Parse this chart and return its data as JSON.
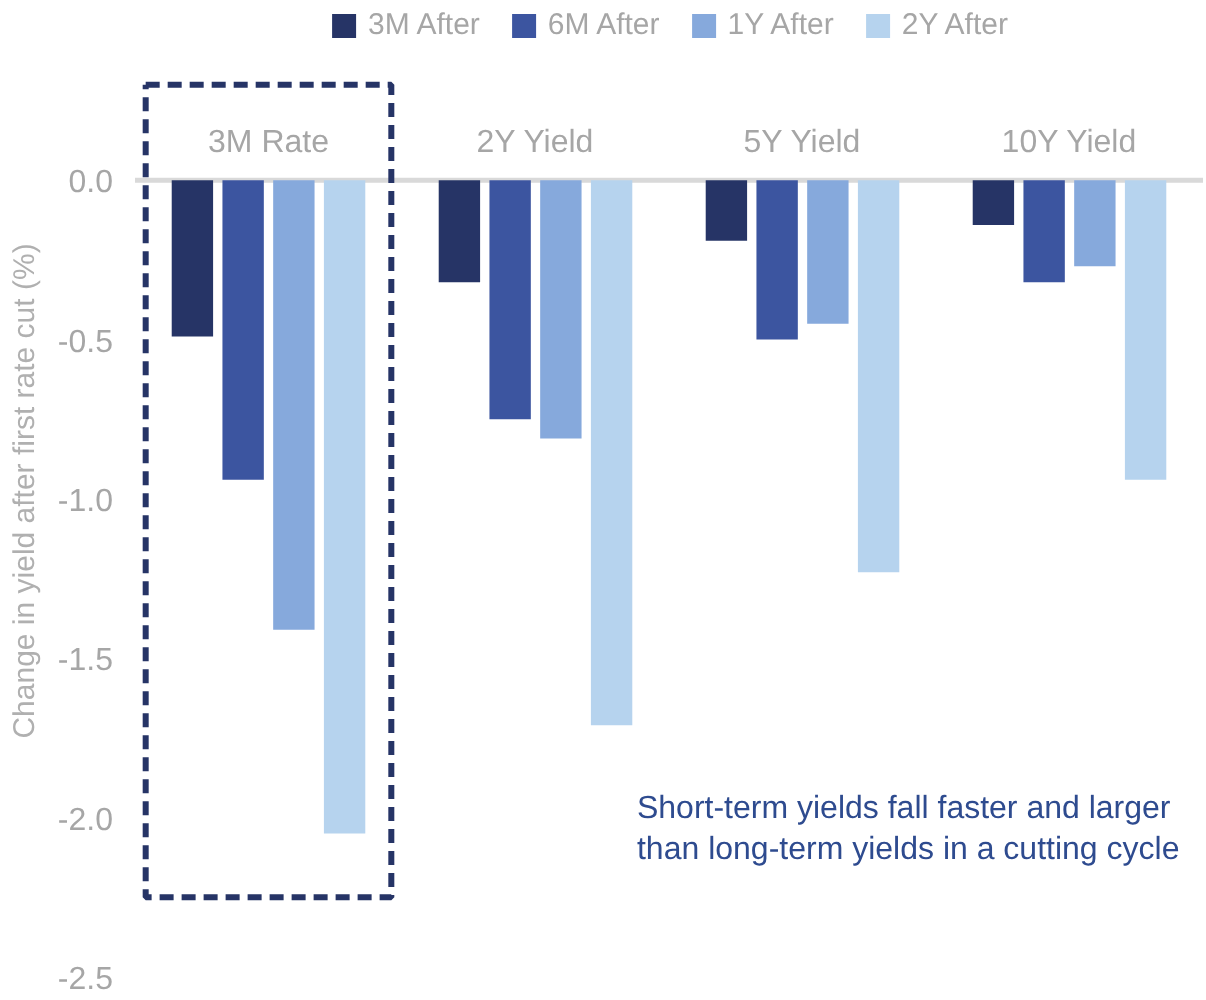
{
  "chart_data": {
    "type": "bar",
    "ylabel": "Change in yield after first rate cut (%)",
    "categories": [
      "3M Rate",
      "2Y Yield",
      "5Y Yield",
      "10Y Yield"
    ],
    "series": [
      {
        "name": "3M After",
        "color": "#263466",
        "values": [
          -0.49,
          -0.32,
          -0.19,
          -0.14
        ]
      },
      {
        "name": "6M After",
        "color": "#3c55a0",
        "values": [
          -0.94,
          -0.75,
          -0.5,
          -0.32
        ]
      },
      {
        "name": "1Y After",
        "color": "#86a9dc",
        "values": [
          -1.41,
          -0.81,
          -0.45,
          -0.27
        ]
      },
      {
        "name": "2Y After",
        "color": "#b6d3ee",
        "values": [
          -2.05,
          -1.71,
          -1.23,
          -0.94
        ]
      }
    ],
    "ylim": [
      -2.5,
      0.55
    ],
    "yticks": [
      {
        "value": 0,
        "label": "0.0"
      },
      -0.5,
      {
        "value": -1,
        "label": "-1.0"
      },
      -1.5,
      {
        "value": -2,
        "label": "-2.0"
      },
      -2.5
    ],
    "annotations": [
      "Short-term yields fall faster and larger\nthan long-term yields in a cutting cycle"
    ],
    "legend": "top",
    "grid": false
  }
}
